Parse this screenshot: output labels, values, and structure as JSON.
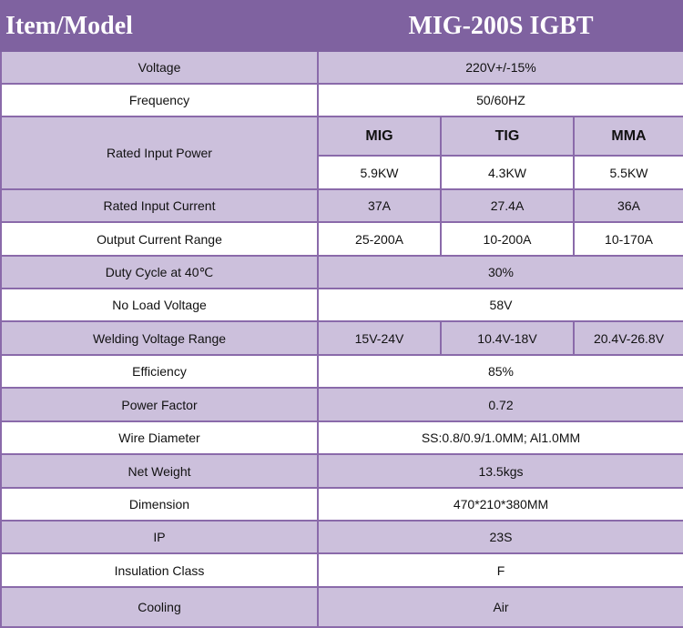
{
  "header": {
    "item": "Item/Model",
    "model": "MIG-200S IGBT"
  },
  "modes": [
    "MIG",
    "TIG",
    "MMA"
  ],
  "rows": {
    "voltage": {
      "label": "Voltage",
      "value": "220V+/-15%"
    },
    "frequency": {
      "label": "Frequency",
      "value": "50/60HZ"
    },
    "rated_input_power": {
      "label": "Rated Input Power",
      "values": [
        "5.9KW",
        "4.3KW",
        "5.5KW"
      ]
    },
    "rated_input_current": {
      "label": "Rated Input Current",
      "values": [
        "37A",
        "27.4A",
        "36A"
      ]
    },
    "output_current_range": {
      "label": "Output Current Range",
      "values": [
        "25-200A",
        "10-200A",
        "10-170A"
      ]
    },
    "duty_cycle": {
      "label": "Duty Cycle at 40℃",
      "value": "30%"
    },
    "no_load_voltage": {
      "label": "No Load Voltage",
      "value": "58V"
    },
    "welding_voltage_range": {
      "label": "Welding Voltage Range",
      "values": [
        "15V-24V",
        "10.4V-18V",
        "20.4V-26.8V"
      ]
    },
    "efficiency": {
      "label": "Efficiency",
      "value": "85%"
    },
    "power_factor": {
      "label": "Power Factor",
      "value": "0.72"
    },
    "wire_diameter": {
      "label": "Wire Diameter",
      "value": "SS:0.8/0.9/1.0MM; Al1.0MM"
    },
    "net_weight": {
      "label": "Net Weight",
      "value": "13.5kgs"
    },
    "dimension": {
      "label": "Dimension",
      "value": "470*210*380MM"
    },
    "ip": {
      "label": "IP",
      "value": "23S"
    },
    "insulation_class": {
      "label": "Insulation Class",
      "value": "F"
    },
    "cooling": {
      "label": "Cooling",
      "value": "Air"
    }
  },
  "colors": {
    "header": "#7f62a0",
    "row_shade": "#ccc0dc",
    "border": "#8a6aaa"
  }
}
